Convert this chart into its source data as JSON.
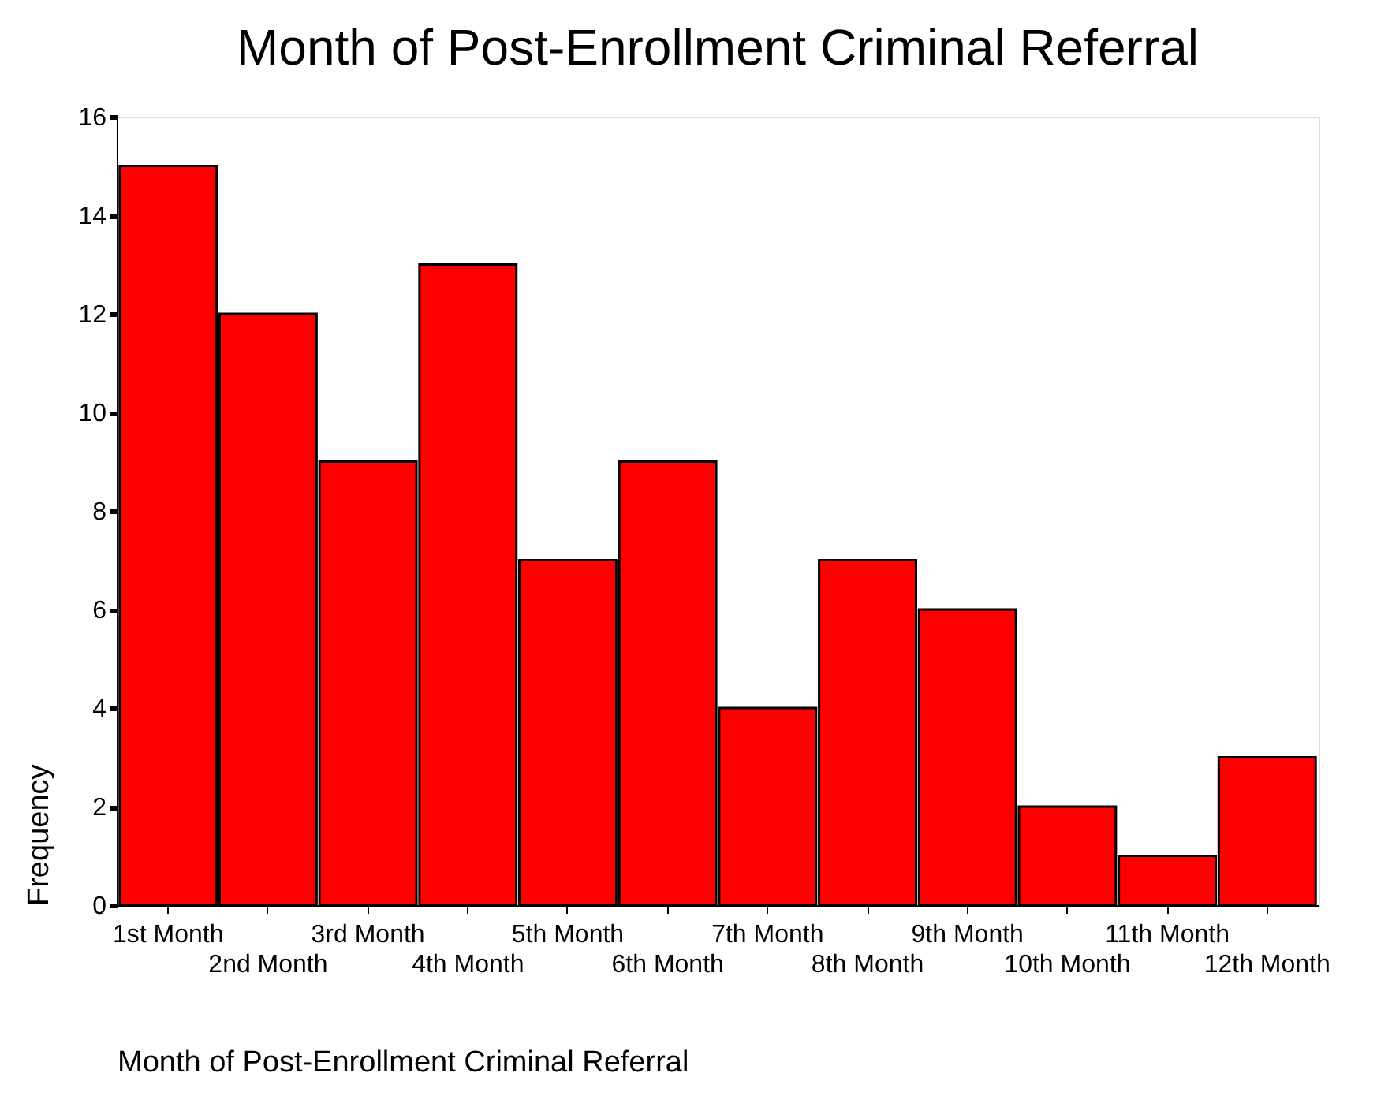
{
  "chart_data": {
    "type": "bar",
    "title": "Month of Post-Enrollment Criminal Referral",
    "xlabel": "Month of Post-Enrollment Criminal Referral",
    "ylabel": "Frequency",
    "categories": [
      "1st Month",
      "2nd Month",
      "3rd Month",
      "4th Month",
      "5th Month",
      "6th Month",
      "7th Month",
      "8th Month",
      "9th Month",
      "10th Month",
      "11th Month",
      "12th Month"
    ],
    "values": [
      15,
      12,
      9,
      13,
      7,
      9,
      4,
      7,
      6,
      2,
      1,
      3
    ],
    "color": "#ff0000",
    "ylim": [
      0,
      16
    ],
    "yticks": [
      0,
      2,
      4,
      6,
      8,
      10,
      12,
      14,
      16
    ],
    "grid": false
  }
}
